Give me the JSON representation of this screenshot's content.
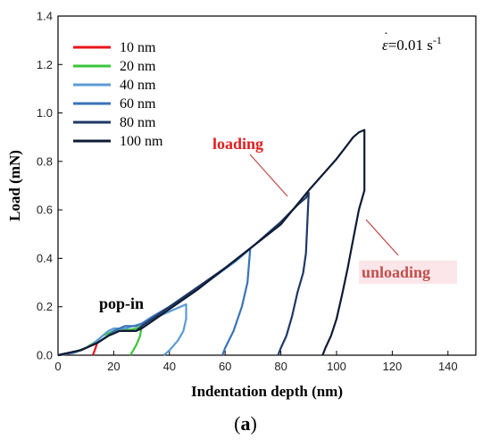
{
  "chart_data": {
    "type": "line",
    "xlabel": "Indentation depth (nm)",
    "ylabel": "Load (mN)",
    "xlim": [
      0,
      150
    ],
    "ylim": [
      0,
      1.4
    ],
    "xticks": [
      0,
      20,
      40,
      60,
      80,
      100,
      120,
      140
    ],
    "yticks": [
      0.0,
      0.2,
      0.4,
      0.6,
      0.8,
      1.0,
      1.2,
      1.4
    ],
    "x_tick_labels": [
      "0",
      "20",
      "40",
      "60",
      "80",
      "100",
      "120",
      "140"
    ],
    "y_tick_labels": [
      "0.0",
      "0.2",
      "0.4",
      "0.6",
      "0.8",
      "1.0",
      "1.2",
      "1.4"
    ],
    "grid": false,
    "legend_position": "top-left",
    "strain_rate": {
      "symbol": "ε",
      "value": "=0.01 s",
      "exponent": "-1"
    },
    "annotations": [
      {
        "text": "loading",
        "color": "#e02020"
      },
      {
        "text": "unloading",
        "color": "#c0504d"
      },
      {
        "text": "pop-in",
        "color": "#000000"
      }
    ],
    "series": [
      {
        "name": "10 nm",
        "color": "#e8161b",
        "x": [
          0,
          3,
          6,
          8,
          10,
          12,
          13,
          14,
          13.5,
          12.5
        ],
        "y": [
          0,
          0.004,
          0.012,
          0.02,
          0.03,
          0.04,
          0.045,
          0.05,
          0.03,
          0.0
        ]
      },
      {
        "name": "20 nm",
        "color": "#3ac43a",
        "x": [
          0,
          5,
          10,
          14,
          16,
          18,
          20,
          22,
          24,
          26,
          28,
          29,
          30,
          29.5,
          28,
          26
        ],
        "y": [
          0,
          0.01,
          0.03,
          0.06,
          0.08,
          0.09,
          0.1,
          0.1,
          0.105,
          0.105,
          0.11,
          0.115,
          0.12,
          0.08,
          0.04,
          0.0
        ]
      },
      {
        "name": "40 nm",
        "color": "#5b9bd5",
        "x": [
          0,
          6,
          12,
          16,
          18,
          20,
          22,
          24,
          27,
          30,
          34,
          38,
          42,
          44,
          46,
          46,
          45,
          43,
          40,
          38
        ],
        "y": [
          0,
          0.01,
          0.04,
          0.08,
          0.1,
          0.11,
          0.11,
          0.11,
          0.12,
          0.13,
          0.15,
          0.17,
          0.19,
          0.2,
          0.21,
          0.15,
          0.1,
          0.06,
          0.02,
          0.0
        ]
      },
      {
        "name": "60 nm",
        "color": "#3a73b8",
        "x": [
          0,
          8,
          14,
          18,
          20,
          22,
          24,
          26,
          28,
          30,
          34,
          40,
          46,
          52,
          58,
          64,
          68,
          69,
          68,
          66,
          63,
          60,
          59
        ],
        "y": [
          0,
          0.02,
          0.05,
          0.08,
          0.1,
          0.11,
          0.12,
          0.12,
          0.12,
          0.13,
          0.16,
          0.2,
          0.24,
          0.29,
          0.34,
          0.39,
          0.43,
          0.44,
          0.3,
          0.2,
          0.1,
          0.03,
          0.0
        ]
      },
      {
        "name": "80 nm",
        "color": "#1f3864",
        "x": [
          0,
          8,
          14,
          18,
          20,
          22,
          24,
          26,
          28,
          30,
          35,
          40,
          50,
          60,
          70,
          80,
          86,
          89,
          90,
          89,
          88,
          86,
          84,
          82,
          80,
          79
        ],
        "y": [
          0,
          0.02,
          0.05,
          0.08,
          0.09,
          0.1,
          0.1,
          0.1,
          0.1,
          0.12,
          0.16,
          0.2,
          0.28,
          0.36,
          0.45,
          0.55,
          0.62,
          0.65,
          0.67,
          0.42,
          0.34,
          0.26,
          0.16,
          0.08,
          0.03,
          0.0
        ]
      },
      {
        "name": "100 nm",
        "color": "#0f1b33",
        "x": [
          0,
          8,
          14,
          18,
          20,
          22,
          24,
          26,
          28,
          30,
          35,
          40,
          50,
          60,
          70,
          80,
          90,
          100,
          106,
          108,
          110,
          110,
          108,
          106,
          104,
          102,
          100,
          98,
          96,
          95
        ],
        "y": [
          0,
          0.02,
          0.05,
          0.08,
          0.09,
          0.1,
          0.1,
          0.1,
          0.1,
          0.11,
          0.15,
          0.19,
          0.27,
          0.36,
          0.45,
          0.54,
          0.68,
          0.81,
          0.9,
          0.92,
          0.93,
          0.68,
          0.6,
          0.48,
          0.36,
          0.25,
          0.15,
          0.08,
          0.03,
          0.0
        ]
      }
    ]
  },
  "caption": {
    "open": "(",
    "letter": "a",
    "close": ")"
  }
}
